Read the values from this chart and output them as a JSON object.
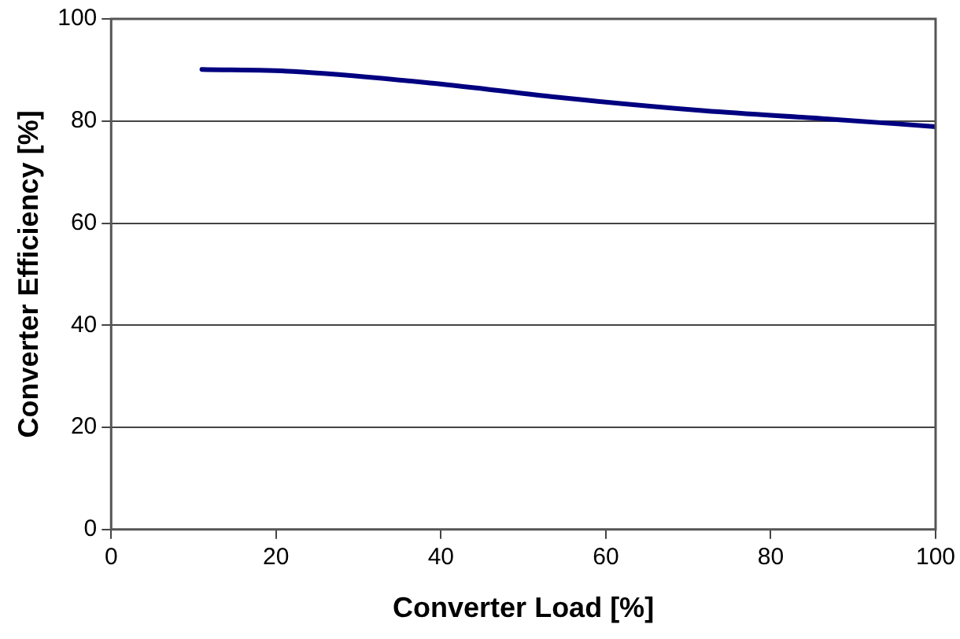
{
  "chart_data": {
    "type": "line",
    "xlabel": "Converter Load [%]",
    "ylabel": "Converter Efficiency [%]",
    "x": [
      11,
      22,
      39,
      55,
      72,
      87,
      100
    ],
    "series": [
      {
        "color": "#000080",
        "values": [
          90.1,
          89.7,
          87.4,
          84.5,
          82,
          80.4,
          78.9
        ]
      }
    ],
    "xlim": [
      0,
      100
    ],
    "xticks": [
      0,
      20,
      40,
      60,
      80,
      100
    ],
    "ylim": [
      0,
      100
    ],
    "yticks": [
      0,
      20,
      40,
      60,
      80,
      100
    ],
    "grid": "y",
    "legend": false,
    "marker": "none",
    "line_style": "solid"
  }
}
